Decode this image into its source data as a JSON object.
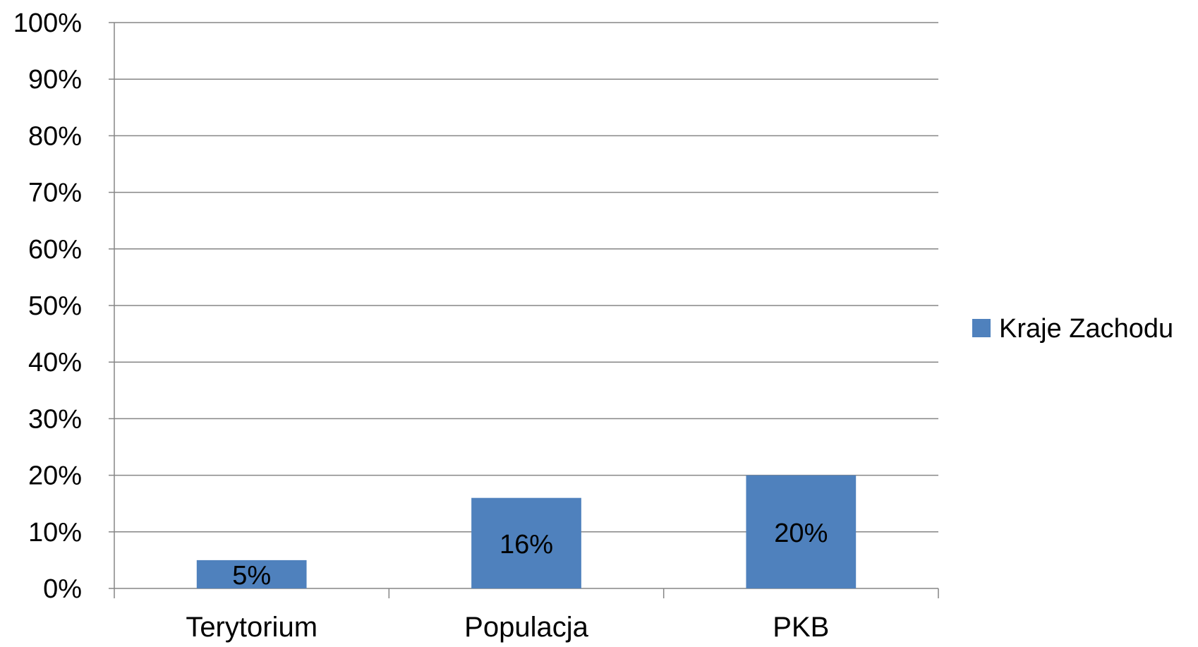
{
  "chart_data": {
    "type": "bar",
    "categories": [
      "Terytorium",
      "Populacja",
      "PKB"
    ],
    "series": [
      {
        "name": "Kraje Zachodu",
        "values": [
          5,
          16,
          20
        ],
        "data_labels": [
          "5%",
          "16%",
          "20%"
        ]
      }
    ],
    "ylim": [
      0,
      100
    ],
    "y_ticks": [
      0,
      10,
      20,
      30,
      40,
      50,
      60,
      70,
      80,
      90,
      100
    ],
    "y_tick_labels": [
      "0%",
      "10%",
      "20%",
      "30%",
      "40%",
      "50%",
      "60%",
      "70%",
      "80%",
      "90%",
      "100%"
    ],
    "grid": true,
    "legend_position": "right",
    "colors": {
      "bar": "#4f81bd",
      "grid": "#868686",
      "axis": "#868686"
    }
  }
}
